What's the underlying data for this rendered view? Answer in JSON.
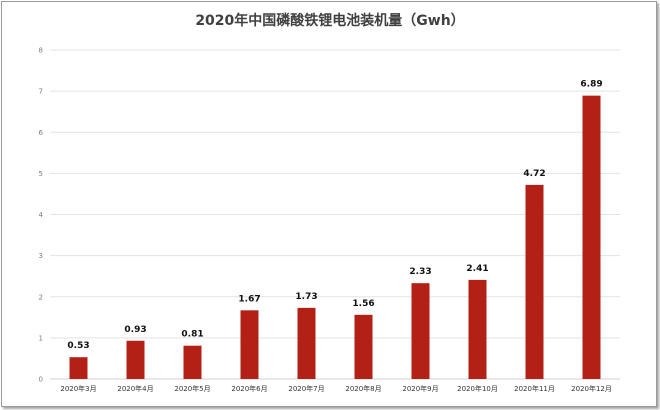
{
  "chart_data": {
    "type": "bar",
    "title": "2020年中国磷酸铁锂电池装机量（Gwh）",
    "categories": [
      "2020年3月",
      "2020年4月",
      "2020年5月",
      "2020年6月",
      "2020年7月",
      "2020年8月",
      "2020年9月",
      "2020年10月",
      "2020年11月",
      "2020年12月"
    ],
    "values": [
      0.53,
      0.93,
      0.81,
      1.67,
      1.73,
      1.56,
      2.33,
      2.41,
      4.72,
      6.89
    ],
    "data_labels": [
      "0.53",
      "0.93",
      "0.81",
      "1.67",
      "1.73",
      "1.56",
      "2.33",
      "2.41",
      "4.72",
      "6.89"
    ],
    "xlabel": "",
    "ylabel": "",
    "ylim": [
      0,
      8
    ],
    "yticks": [
      "0",
      "1",
      "2",
      "3",
      "4",
      "5",
      "6",
      "7",
      "8"
    ],
    "grid": true,
    "bar_color": "#b22016"
  }
}
